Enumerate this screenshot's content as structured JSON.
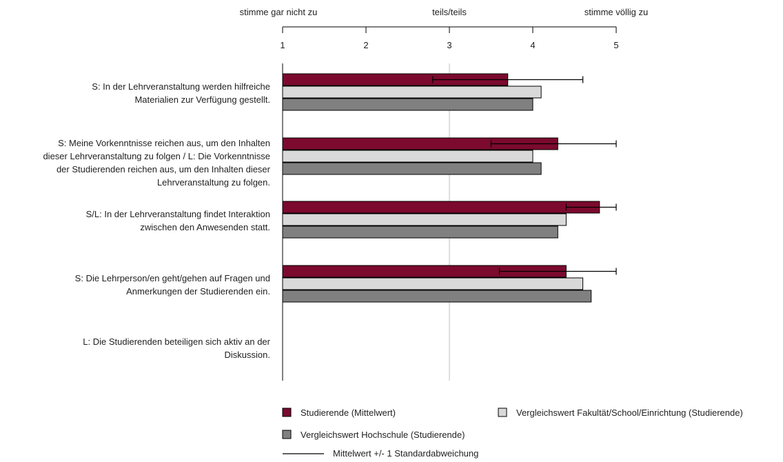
{
  "chart_data": {
    "type": "bar",
    "orientation": "horizontal",
    "scale_labels": {
      "min": "stimme gar nicht zu",
      "mid": "teils/teils",
      "max": "stimme völlig zu"
    },
    "xlim": [
      1,
      5
    ],
    "ticks": [
      "1",
      "2",
      "3",
      "4",
      "5"
    ],
    "grid": "vertical line at 3",
    "categories": [
      [
        "S: In der Lehrveranstaltung werden hilfreiche",
        "Materialien zur Verfügung gestellt."
      ],
      [
        "S: Meine Vorkenntnisse reichen aus, um den Inhalten",
        "dieser Lehrveranstaltung zu folgen / L: Die Vorkenntnisse",
        "der Studierenden reichen aus, um den Inhalten dieser",
        "Lehrveranstaltung zu folgen."
      ],
      [
        "S/L: In der Lehrveranstaltung findet Interaktion",
        "zwischen den Anwesenden statt."
      ],
      [
        "S: Die Lehrperson/en geht/gehen auf Fragen und",
        "Anmerkungen der Studierenden ein."
      ],
      [
        "L: Die Studierenden beteiligen sich aktiv an der",
        "Diskussion."
      ]
    ],
    "series": [
      {
        "name": "Studierende (Mittelwert)",
        "color": "#7b0a2e",
        "values": [
          3.7,
          4.3,
          4.8,
          4.4,
          null
        ]
      },
      {
        "name": "Vergleichswert Fakultät/School/Einrichtung (Studierende)",
        "color": "#d9d9d9",
        "values": [
          4.1,
          4.0,
          4.4,
          4.6,
          null
        ]
      },
      {
        "name": "Vergleichswert Hochschule (Studierende)",
        "color": "#808080",
        "values": [
          4.0,
          4.1,
          4.3,
          4.7,
          null
        ]
      }
    ],
    "error_bars": {
      "series": "Studierende (Mittelwert)",
      "low": [
        2.8,
        3.5,
        4.4,
        3.6,
        null
      ],
      "high": [
        4.6,
        5.0,
        5.0,
        5.0,
        null
      ]
    },
    "error_legend": "Mittelwert +/- 1 Standardabweichung",
    "legend_position": "bottom"
  }
}
